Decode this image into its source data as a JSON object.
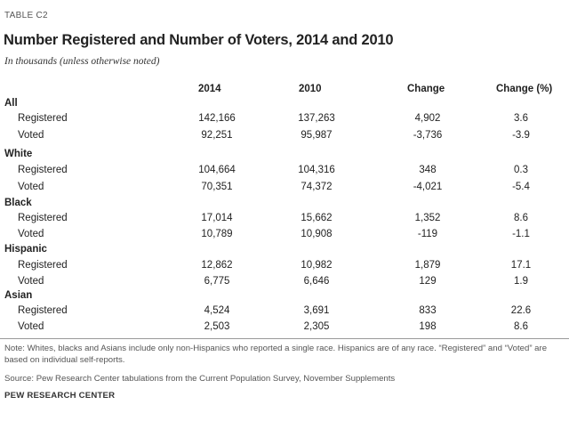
{
  "table_label": "TABLE C2",
  "title": "Number Registered and Number of Voters, 2014 and 2010",
  "subtitle": "In thousands (unless otherwise noted)",
  "columns": [
    "2014",
    "2010",
    "Change",
    "Change (%)"
  ],
  "groups": [
    {
      "name": "All",
      "rows": [
        {
          "label": "Registered",
          "v2014": "142,166",
          "v2010": "137,263",
          "change": "4,902",
          "pct": "3.6"
        },
        {
          "label": "Voted",
          "v2014": "92,251",
          "v2010": "95,987",
          "change": "-3,736",
          "pct": "-3.9"
        }
      ]
    },
    {
      "name": "White",
      "rows": [
        {
          "label": "Registered",
          "v2014": "104,664",
          "v2010": "104,316",
          "change": "348",
          "pct": "0.3"
        },
        {
          "label": "Voted",
          "v2014": "70,351",
          "v2010": "74,372",
          "change": "-4,021",
          "pct": "-5.4"
        }
      ]
    },
    {
      "name": "Black",
      "rows": [
        {
          "label": "Registered",
          "v2014": "17,014",
          "v2010": "15,662",
          "change": "1,352",
          "pct": "8.6"
        },
        {
          "label": "Voted",
          "v2014": "10,789",
          "v2010": "10,908",
          "change": "-119",
          "pct": "-1.1"
        }
      ]
    },
    {
      "name": "Hispanic",
      "rows": [
        {
          "label": "Registered",
          "v2014": "12,862",
          "v2010": "10,982",
          "change": "1,879",
          "pct": "17.1"
        },
        {
          "label": "Voted",
          "v2014": "6,775",
          "v2010": "6,646",
          "change": "129",
          "pct": "1.9"
        }
      ]
    },
    {
      "name": "Asian",
      "rows": [
        {
          "label": "Registered",
          "v2014": "4,524",
          "v2010": "3,691",
          "change": "833",
          "pct": "22.6"
        },
        {
          "label": "Voted",
          "v2014": "2,503",
          "v2010": "2,305",
          "change": "198",
          "pct": "8.6"
        }
      ]
    }
  ],
  "note": "Note: Whites, blacks and Asians include only non-Hispanics who reported a single race. Hispanics are of any race. “Registered” and “Voted” are based on individual self-reports.",
  "source": "Source: Pew Research Center tabulations from the Current Population Survey, November Supplements",
  "credit": "PEW RESEARCH CENTER"
}
